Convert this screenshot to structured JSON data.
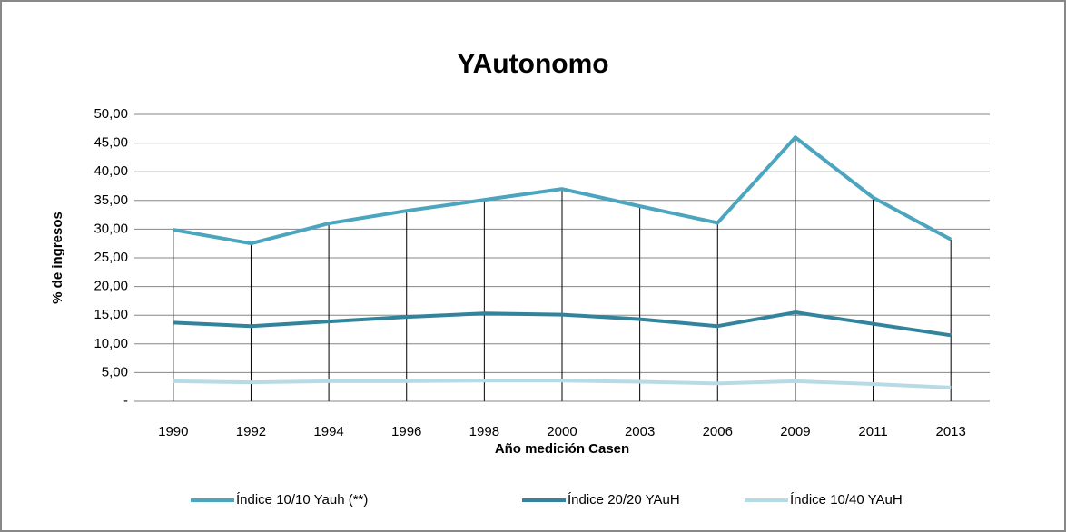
{
  "chart_data": {
    "type": "line",
    "title": "YAutonomo",
    "x_label": "Año medición Casen",
    "y_label": "% de ingresos",
    "categories": [
      "1990",
      "1992",
      "1994",
      "1996",
      "1998",
      "2000",
      "2003",
      "2006",
      "2009",
      "2011",
      "2013"
    ],
    "series": [
      {
        "name": "Índice 10/10 Yauh (**)",
        "color": "#4ba5bf",
        "values": [
          29.9,
          27.5,
          31.0,
          33.2,
          35.1,
          37.0,
          34.0,
          31.1,
          46.0,
          35.5,
          28.2
        ]
      },
      {
        "name": "Índice 20/20 YAuH",
        "color": "#31849b",
        "values": [
          13.7,
          13.1,
          13.9,
          14.7,
          15.3,
          15.1,
          14.3,
          13.1,
          15.5,
          13.5,
          11.5
        ]
      },
      {
        "name": "Índice 10/40 YAuH",
        "color": "#b7dbe6",
        "values": [
          3.5,
          3.3,
          3.5,
          3.5,
          3.6,
          3.6,
          3.4,
          3.1,
          3.5,
          3.0,
          2.4
        ]
      }
    ],
    "ylim": [
      0,
      50
    ],
    "yticks": [
      {
        "value": 0,
        "label": "-"
      },
      {
        "value": 5,
        "label": "5,00"
      },
      {
        "value": 10,
        "label": "10,00"
      },
      {
        "value": 15,
        "label": "15,00"
      },
      {
        "value": 20,
        "label": "20,00"
      },
      {
        "value": 25,
        "label": "25,00"
      },
      {
        "value": 30,
        "label": "30,00"
      },
      {
        "value": 35,
        "label": "35,00"
      },
      {
        "value": 40,
        "label": "40,00"
      },
      {
        "value": 45,
        "label": "45,00"
      },
      {
        "value": 50,
        "label": "50,00"
      }
    ],
    "grid": true,
    "legend": "bottom"
  }
}
